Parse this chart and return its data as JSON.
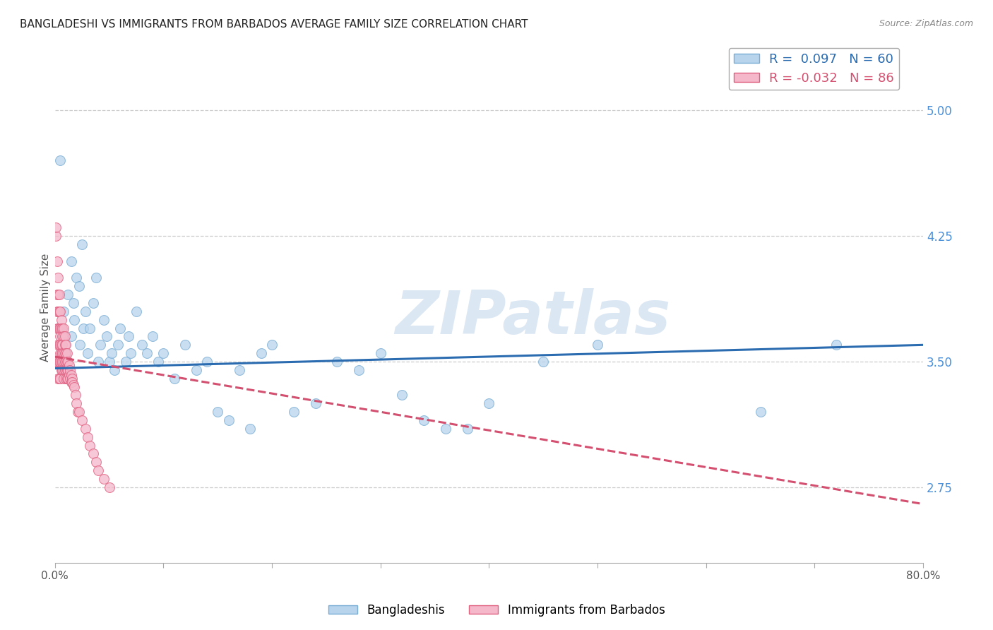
{
  "title": "BANGLADESHI VS IMMIGRANTS FROM BARBADOS AVERAGE FAMILY SIZE CORRELATION CHART",
  "source": "Source: ZipAtlas.com",
  "ylabel": "Average Family Size",
  "xlim": [
    0.0,
    0.8
  ],
  "ylim": [
    2.3,
    5.35
  ],
  "yticks": [
    2.75,
    3.5,
    4.25,
    5.0
  ],
  "xticks": [
    0.0,
    0.1,
    0.2,
    0.3,
    0.4,
    0.5,
    0.6,
    0.7,
    0.8
  ],
  "series": [
    {
      "name": "Bangladeshis",
      "color": "#b8d4ed",
      "edge_color": "#7aadd4",
      "R": 0.097,
      "N": 60,
      "trend_color": "#2b6cb0",
      "trend_style": "solid",
      "x": [
        0.005,
        0.008,
        0.01,
        0.012,
        0.015,
        0.015,
        0.017,
        0.018,
        0.02,
        0.022,
        0.023,
        0.025,
        0.026,
        0.028,
        0.03,
        0.032,
        0.035,
        0.038,
        0.04,
        0.042,
        0.045,
        0.048,
        0.05,
        0.052,
        0.055,
        0.058,
        0.06,
        0.065,
        0.068,
        0.07,
        0.075,
        0.08,
        0.085,
        0.09,
        0.095,
        0.1,
        0.11,
        0.12,
        0.13,
        0.14,
        0.15,
        0.16,
        0.17,
        0.18,
        0.19,
        0.2,
        0.22,
        0.24,
        0.26,
        0.28,
        0.3,
        0.32,
        0.34,
        0.36,
        0.38,
        0.4,
        0.45,
        0.5,
        0.65,
        0.72
      ],
      "y": [
        4.7,
        3.8,
        3.55,
        3.9,
        4.1,
        3.65,
        3.85,
        3.75,
        4.0,
        3.95,
        3.6,
        4.2,
        3.7,
        3.8,
        3.55,
        3.7,
        3.85,
        4.0,
        3.5,
        3.6,
        3.75,
        3.65,
        3.5,
        3.55,
        3.45,
        3.6,
        3.7,
        3.5,
        3.65,
        3.55,
        3.8,
        3.6,
        3.55,
        3.65,
        3.5,
        3.55,
        3.4,
        3.6,
        3.45,
        3.5,
        3.2,
        3.15,
        3.45,
        3.1,
        3.55,
        3.6,
        3.2,
        3.25,
        3.5,
        3.45,
        3.55,
        3.3,
        3.15,
        3.1,
        3.1,
        3.25,
        3.5,
        3.6,
        3.2,
        3.6
      ],
      "trend_x": [
        0.0,
        0.8
      ],
      "trend_y": [
        3.46,
        3.6
      ]
    },
    {
      "name": "Immigrants from Barbados",
      "color": "#f5b8cb",
      "edge_color": "#e06080",
      "R": -0.032,
      "N": 86,
      "trend_color": "#d45070",
      "trend_style": "dashed",
      "x": [
        0.001,
        0.001,
        0.001,
        0.002,
        0.002,
        0.002,
        0.002,
        0.002,
        0.003,
        0.003,
        0.003,
        0.003,
        0.003,
        0.003,
        0.003,
        0.004,
        0.004,
        0.004,
        0.004,
        0.004,
        0.004,
        0.005,
        0.005,
        0.005,
        0.005,
        0.005,
        0.005,
        0.005,
        0.006,
        0.006,
        0.006,
        0.006,
        0.006,
        0.006,
        0.007,
        0.007,
        0.007,
        0.007,
        0.007,
        0.007,
        0.008,
        0.008,
        0.008,
        0.008,
        0.008,
        0.008,
        0.009,
        0.009,
        0.009,
        0.009,
        0.009,
        0.01,
        0.01,
        0.01,
        0.01,
        0.01,
        0.011,
        0.011,
        0.011,
        0.011,
        0.012,
        0.012,
        0.012,
        0.013,
        0.013,
        0.014,
        0.014,
        0.015,
        0.015,
        0.016,
        0.016,
        0.017,
        0.018,
        0.019,
        0.02,
        0.021,
        0.022,
        0.025,
        0.028,
        0.03,
        0.032,
        0.035,
        0.038,
        0.04,
        0.045,
        0.05
      ],
      "y": [
        4.25,
        4.3,
        3.5,
        4.1,
        3.9,
        3.8,
        3.7,
        3.5,
        4.0,
        3.9,
        3.8,
        3.7,
        3.6,
        3.5,
        3.4,
        3.9,
        3.8,
        3.7,
        3.6,
        3.5,
        3.4,
        3.8,
        3.7,
        3.65,
        3.6,
        3.55,
        3.5,
        3.4,
        3.75,
        3.7,
        3.6,
        3.55,
        3.5,
        3.45,
        3.7,
        3.65,
        3.6,
        3.55,
        3.5,
        3.45,
        3.7,
        3.65,
        3.55,
        3.5,
        3.45,
        3.4,
        3.65,
        3.6,
        3.55,
        3.5,
        3.45,
        3.6,
        3.55,
        3.5,
        3.45,
        3.4,
        3.55,
        3.5,
        3.45,
        3.4,
        3.5,
        3.45,
        3.4,
        3.48,
        3.42,
        3.45,
        3.4,
        3.42,
        3.38,
        3.4,
        3.38,
        3.36,
        3.35,
        3.3,
        3.25,
        3.2,
        3.2,
        3.15,
        3.1,
        3.05,
        3.0,
        2.95,
        2.9,
        2.85,
        2.8,
        2.75
      ],
      "trend_x": [
        0.0,
        0.8
      ],
      "trend_y": [
        3.53,
        2.65
      ]
    }
  ],
  "watermark": "ZIPatlas",
  "watermark_color": "#c5d8ee",
  "background_color": "#ffffff",
  "grid_color": "#cccccc",
  "title_fontsize": 11,
  "axis_label_fontsize": 11,
  "tick_fontsize": 11,
  "right_ytick_color": "#4a90d9",
  "marker_size": 100
}
